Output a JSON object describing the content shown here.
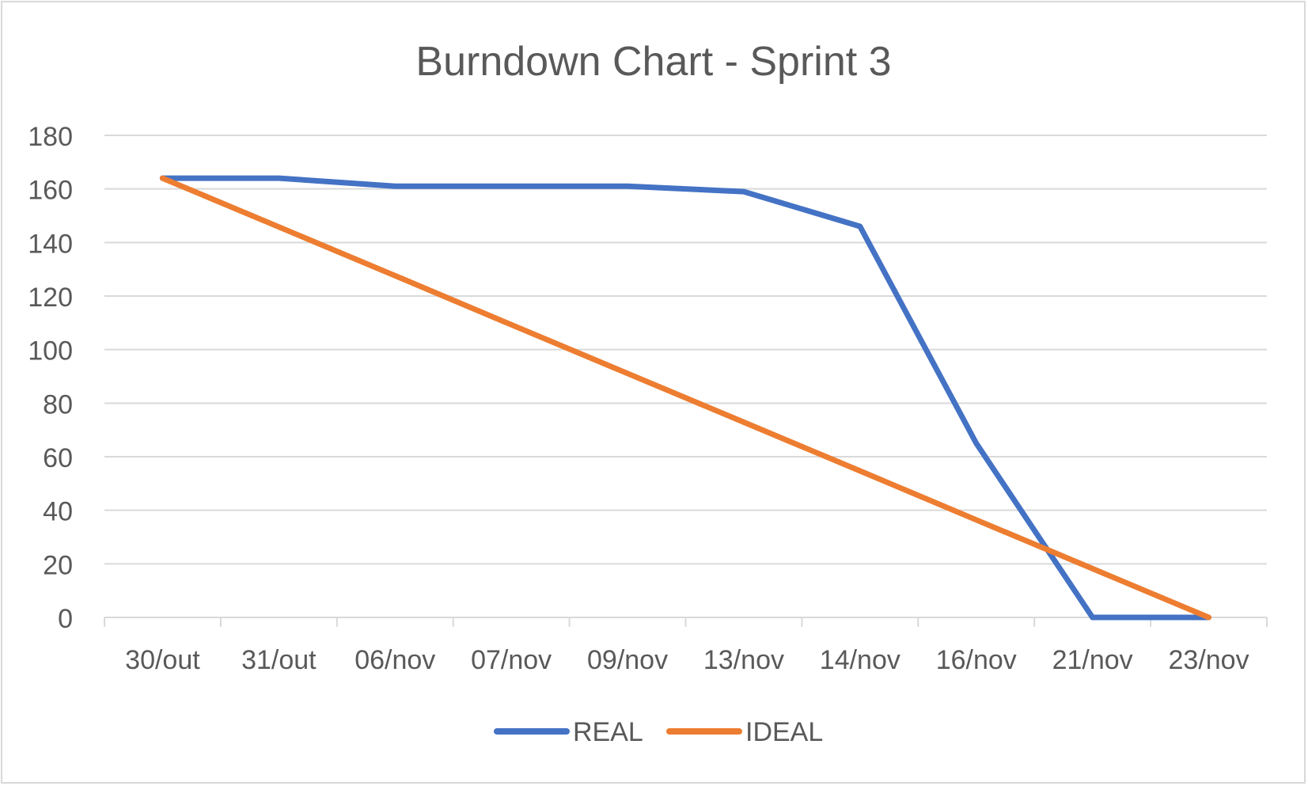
{
  "chart_data": {
    "type": "line",
    "title": "Burndown Chart - Sprint 3",
    "xlabel": "",
    "ylabel": "",
    "categories": [
      "30/out",
      "31/out",
      "06/nov",
      "07/nov",
      "09/nov",
      "13/nov",
      "14/nov",
      "16/nov",
      "21/nov",
      "23/nov"
    ],
    "ylim": [
      0,
      180
    ],
    "yticks": [
      "0",
      "20",
      "40",
      "60",
      "80",
      "100",
      "120",
      "140",
      "160",
      "180"
    ],
    "grid": true,
    "legend": "bottom-center",
    "series": [
      {
        "name": "REAL",
        "color": "#4472c4",
        "values": [
          164,
          164,
          161,
          161,
          161,
          159,
          146,
          65,
          0,
          0
        ]
      },
      {
        "name": "IDEAL",
        "color": "#ed7d31",
        "values": [
          164,
          145.8,
          127.6,
          109.3,
          91.1,
          72.9,
          54.7,
          36.4,
          18.2,
          0
        ]
      }
    ]
  }
}
